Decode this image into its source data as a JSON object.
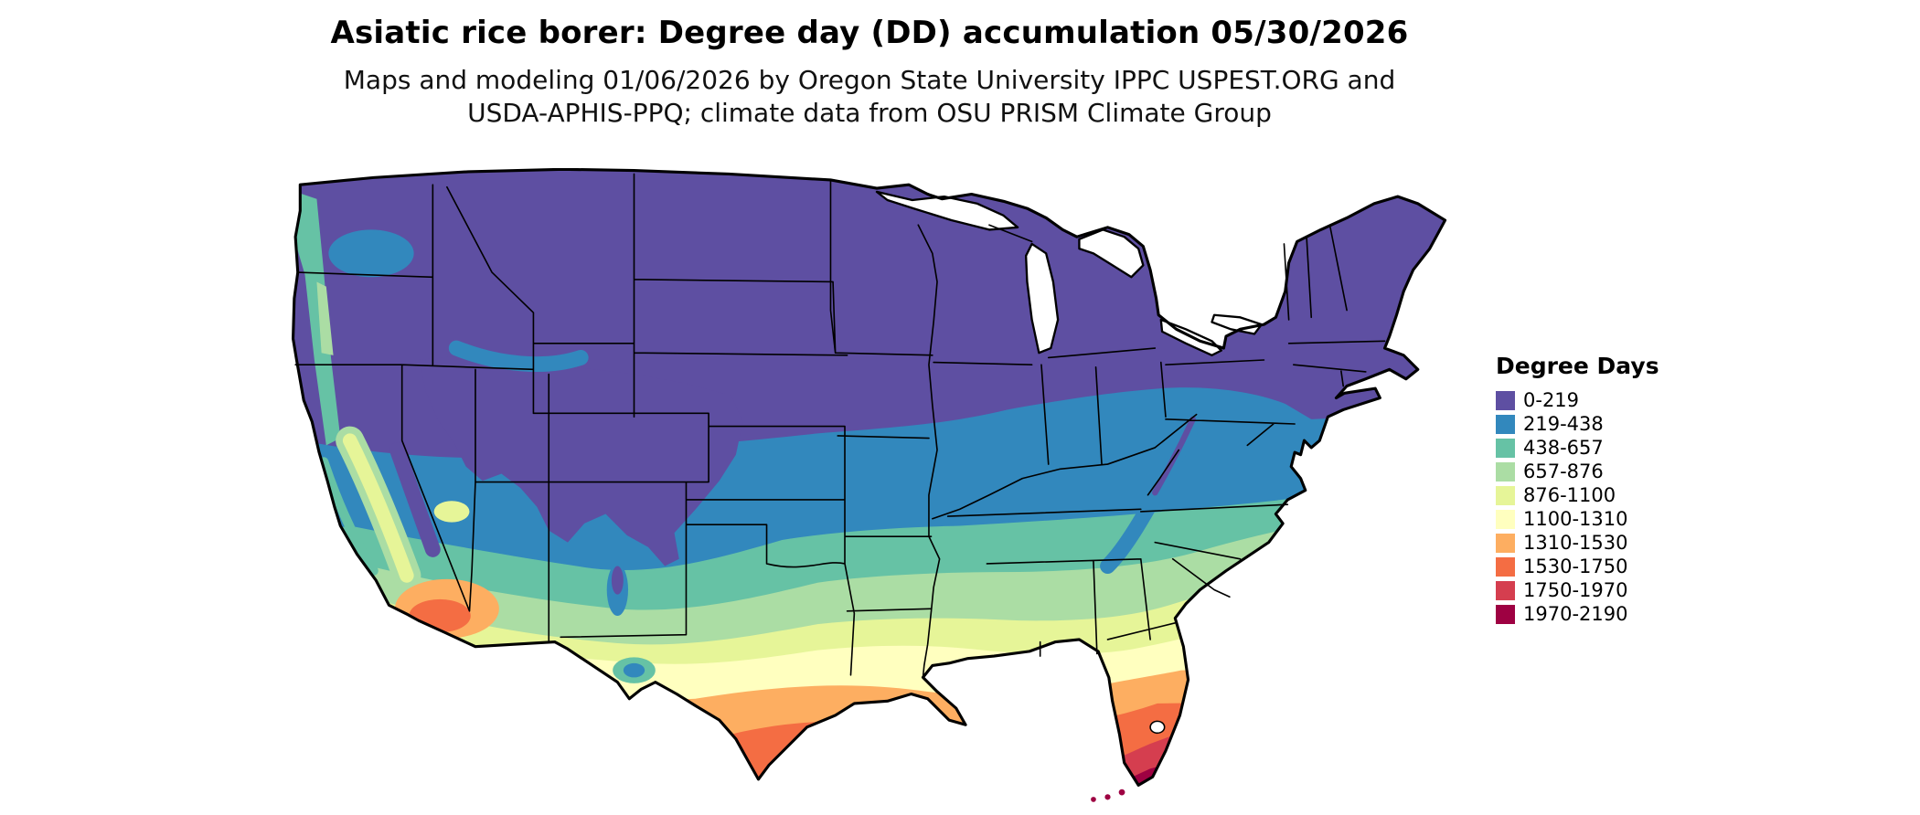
{
  "title": "Asiatic rice borer: Degree day (DD) accumulation 05/30/2026",
  "subtitle_line1": "Maps and modeling 01/06/2026 by Oregon State University IPPC USPEST.ORG and",
  "subtitle_line2": "USDA-APHIS-PPQ; climate data from OSU PRISM Climate Group",
  "legend": {
    "title": "Degree Days",
    "items": [
      {
        "label": "0-219",
        "color": "#5e4fa2"
      },
      {
        "label": "219-438",
        "color": "#3288bd"
      },
      {
        "label": "438-657",
        "color": "#66c2a5"
      },
      {
        "label": "657-876",
        "color": "#abdda4"
      },
      {
        "label": "876-1100",
        "color": "#e6f598"
      },
      {
        "label": "1100-1310",
        "color": "#ffffbf"
      },
      {
        "label": "1310-1530",
        "color": "#fdae61"
      },
      {
        "label": "1530-1750",
        "color": "#f46d43"
      },
      {
        "label": "1750-1970",
        "color": "#d53e4f"
      },
      {
        "label": "1970-2190",
        "color": "#9e0142"
      }
    ]
  },
  "map": {
    "region": "Continental United States",
    "value_shown": "Accumulated degree days (DD) for Asiatic rice borer",
    "gradient_note": "Low accumulation (purple) in the north and mountain west, increasing southward to maximum (dark red) in south Florida and the Florida Keys"
  }
}
